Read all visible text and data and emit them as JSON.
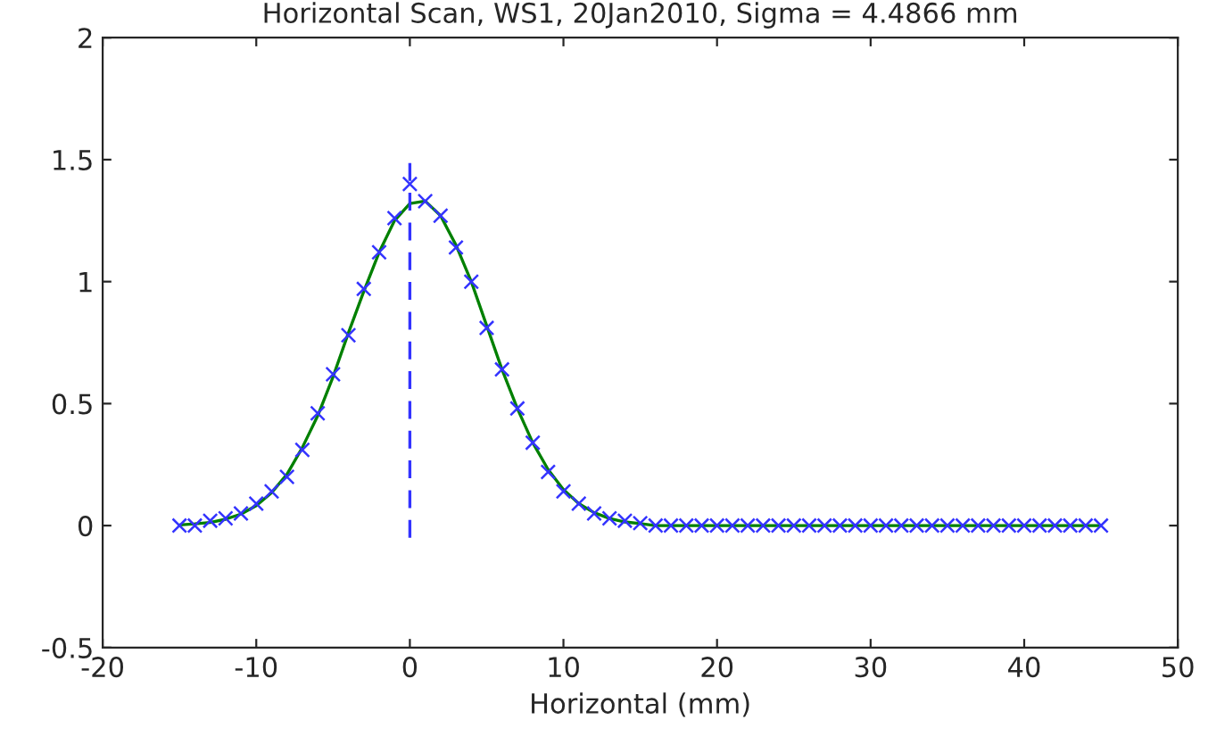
{
  "chart_data": {
    "type": "scatter",
    "title": "Horizontal Scan, WS1, 20Jan2010, Sigma = 4.4866 mm",
    "xlabel": "Horizontal (mm)",
    "xlim": [
      -20,
      50
    ],
    "xticks": [
      -20,
      -10,
      0,
      10,
      20,
      30,
      40,
      50
    ],
    "ylim": [
      -0.5,
      2
    ],
    "yticks": [
      -0.5,
      0,
      0.5,
      1,
      1.5,
      2
    ],
    "grid": false,
    "x": [
      -15,
      -14,
      -13,
      -12,
      -11,
      -10,
      -9,
      -8,
      -7,
      -6,
      -5,
      -4,
      -3,
      -2,
      -1,
      0,
      1,
      2,
      3,
      4,
      5,
      6,
      7,
      8,
      9,
      10,
      11,
      12,
      13,
      14,
      15,
      16,
      17,
      18,
      19,
      20,
      21,
      22,
      23,
      24,
      25,
      26,
      27,
      28,
      29,
      30,
      31,
      32,
      33,
      34,
      35,
      36,
      37,
      38,
      39,
      40,
      41,
      42,
      43,
      44,
      45
    ],
    "series": [
      {
        "marker": "cross",
        "color": "#3333ff",
        "values": [
          0.0,
          0.0,
          0.02,
          0.03,
          0.05,
          0.09,
          0.14,
          0.2,
          0.31,
          0.46,
          0.62,
          0.78,
          0.97,
          1.12,
          1.26,
          1.4,
          1.33,
          1.27,
          1.14,
          1.0,
          0.81,
          0.64,
          0.48,
          0.34,
          0.22,
          0.14,
          0.09,
          0.05,
          0.03,
          0.02,
          0.01,
          0,
          0,
          0,
          0,
          0,
          0,
          0,
          0,
          0,
          0,
          0,
          0,
          0,
          0,
          0,
          0,
          0,
          0,
          0,
          0,
          0,
          0,
          0,
          0,
          0,
          0,
          0,
          0,
          0,
          0
        ]
      },
      {
        "type": "line",
        "marker": "none",
        "line_style": "solid",
        "color": "#008000",
        "values": [
          0.003,
          0.007,
          0.013,
          0.026,
          0.047,
          0.082,
          0.135,
          0.21,
          0.32,
          0.45,
          0.61,
          0.79,
          0.96,
          1.12,
          1.25,
          1.32,
          1.33,
          1.27,
          1.15,
          1.0,
          0.82,
          0.64,
          0.48,
          0.34,
          0.23,
          0.148,
          0.09,
          0.053,
          0.029,
          0.015,
          0.008,
          0,
          0,
          0,
          0,
          0,
          0,
          0,
          0,
          0,
          0,
          0,
          0,
          0,
          0,
          0,
          0,
          0,
          0,
          0,
          0,
          0,
          0,
          0,
          0,
          0,
          0,
          0,
          0,
          0,
          0
        ]
      },
      {
        "type": "line",
        "marker": "none",
        "line_style": "dashed",
        "color": "#3333ff",
        "x": [
          0,
          0
        ],
        "values": [
          -0.05,
          1.5
        ]
      }
    ]
  }
}
